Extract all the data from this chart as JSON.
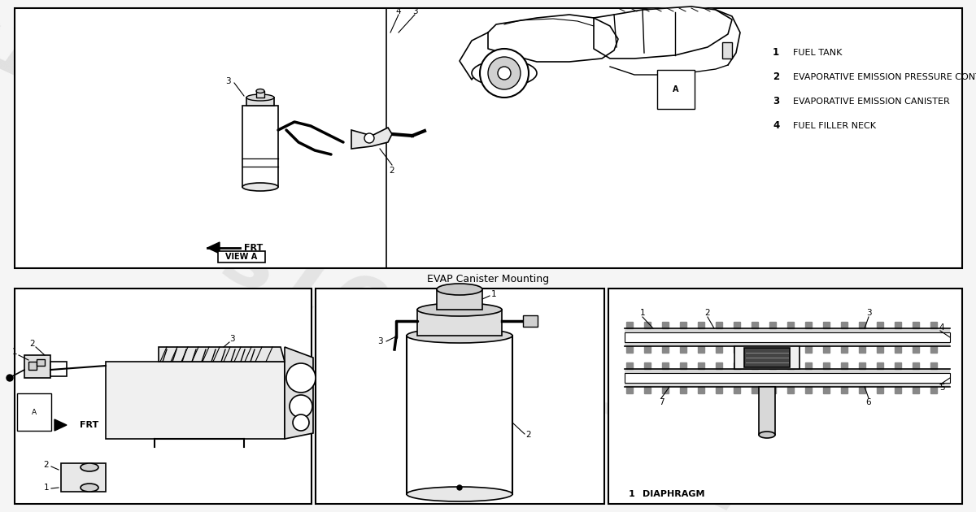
{
  "title": "EVAP Canister Mounting",
  "background_color": "#f5f5f5",
  "border_color": "#000000",
  "text_color": "#000000",
  "watermark_text": "s10box.com",
  "watermark_color": "#d0d0d0",
  "top_legend": [
    {
      "num": "1",
      "text": "FUEL TANK"
    },
    {
      "num": "2",
      "text": "EVAPORATIVE EMISSION PRESSURE CONTROL VALVE"
    },
    {
      "num": "3",
      "text": "EVAPORATIVE EMISSION CANISTER"
    },
    {
      "num": "4",
      "text": "FUEL FILLER NECK"
    }
  ],
  "bottom_right_legend": [
    {
      "num": "1",
      "text": "DIAPHRAGM"
    }
  ],
  "font_size_legend": 8.5,
  "font_size_title": 9,
  "font_size_labels": 7.5
}
